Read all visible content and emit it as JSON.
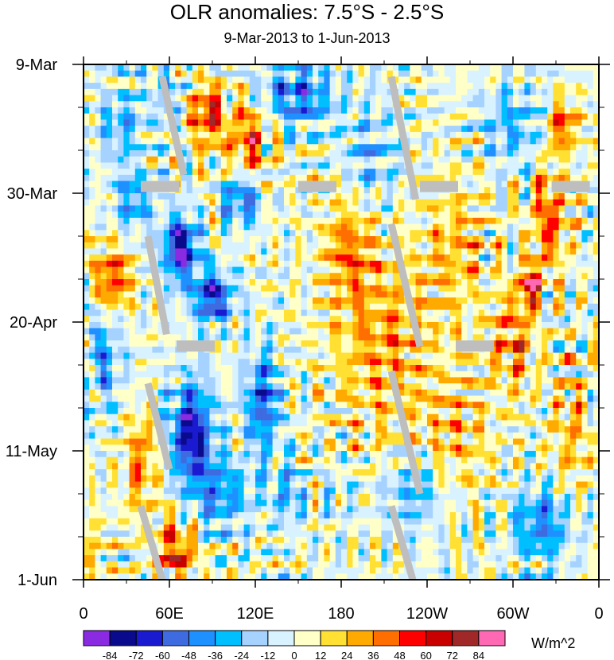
{
  "chart_data": {
    "type": "heatmap",
    "title": "OLR anomalies: 7.5°S - 2.5°S",
    "subtitle": "9-Mar-2013 to 1-Jun-2013",
    "xlabel": "",
    "ylabel": "",
    "x_ticks": [
      "0",
      "60E",
      "120E",
      "180",
      "120W",
      "60W",
      "0"
    ],
    "x_tick_lon": [
      0,
      60,
      120,
      180,
      240,
      300,
      360
    ],
    "xlim": [
      0,
      360
    ],
    "y_ticks": [
      "9-Mar",
      "30-Mar",
      "20-Apr",
      "11-May",
      "1-Jun"
    ],
    "y_tick_day": [
      0,
      21,
      42,
      63,
      84
    ],
    "ylim": [
      0,
      84
    ],
    "colorbar": {
      "levels": [
        "-84",
        "-72",
        "-60",
        "-48",
        "-36",
        "-24",
        "-12",
        "0",
        "12",
        "24",
        "36",
        "48",
        "60",
        "72",
        "84"
      ],
      "colors": [
        "#8a2be2",
        "#0a0a8c",
        "#1a1ad0",
        "#3e6be0",
        "#1e90ff",
        "#00bfff",
        "#a6d2ff",
        "#d8f2ff",
        "#ffffc8",
        "#ffe033",
        "#ffaa00",
        "#ff6e00",
        "#ff0000",
        "#c80000",
        "#a02828",
        "#ff69b4"
      ],
      "units": "W/m^2"
    },
    "missing_color": "#bebebe"
  }
}
